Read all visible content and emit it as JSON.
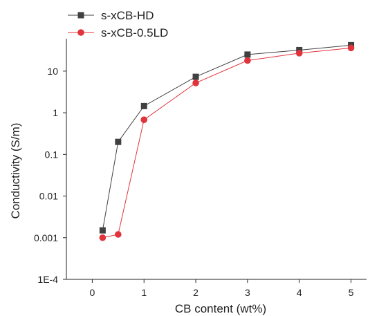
{
  "chart_data": {
    "type": "line",
    "title": "",
    "xlabel": "CB content (wt%)",
    "ylabel": "Conductivity (S/m)",
    "xlim": [
      -0.5,
      5.3
    ],
    "ylim": [
      0.0001,
      60
    ],
    "yscale": "log",
    "x_ticks": [
      0,
      1,
      2,
      3,
      4,
      5
    ],
    "x_tick_labels": [
      "0",
      "1",
      "2",
      "3",
      "4",
      "5"
    ],
    "y_ticks": [
      0.0001,
      0.001,
      0.01,
      0.1,
      1,
      10
    ],
    "y_tick_labels": [
      "1E-4",
      "0.001",
      "0.01",
      "0.1",
      "1",
      "10"
    ],
    "grid": false,
    "legend_position": "top-left",
    "series": [
      {
        "name": "s-xCB-HD",
        "color": "#404040",
        "marker": "square",
        "x": [
          0.2,
          0.5,
          1,
          2,
          3,
          4,
          5
        ],
        "y": [
          0.0015,
          0.2,
          1.45,
          7.3,
          25,
          32,
          42
        ]
      },
      {
        "name": "s-xCB-0.5LD",
        "color": "#e0333b",
        "marker": "circle",
        "x": [
          0.2,
          0.5,
          1,
          2,
          3,
          4,
          5
        ],
        "y": [
          0.001,
          0.0012,
          0.68,
          5.2,
          18,
          27,
          36
        ]
      }
    ]
  }
}
